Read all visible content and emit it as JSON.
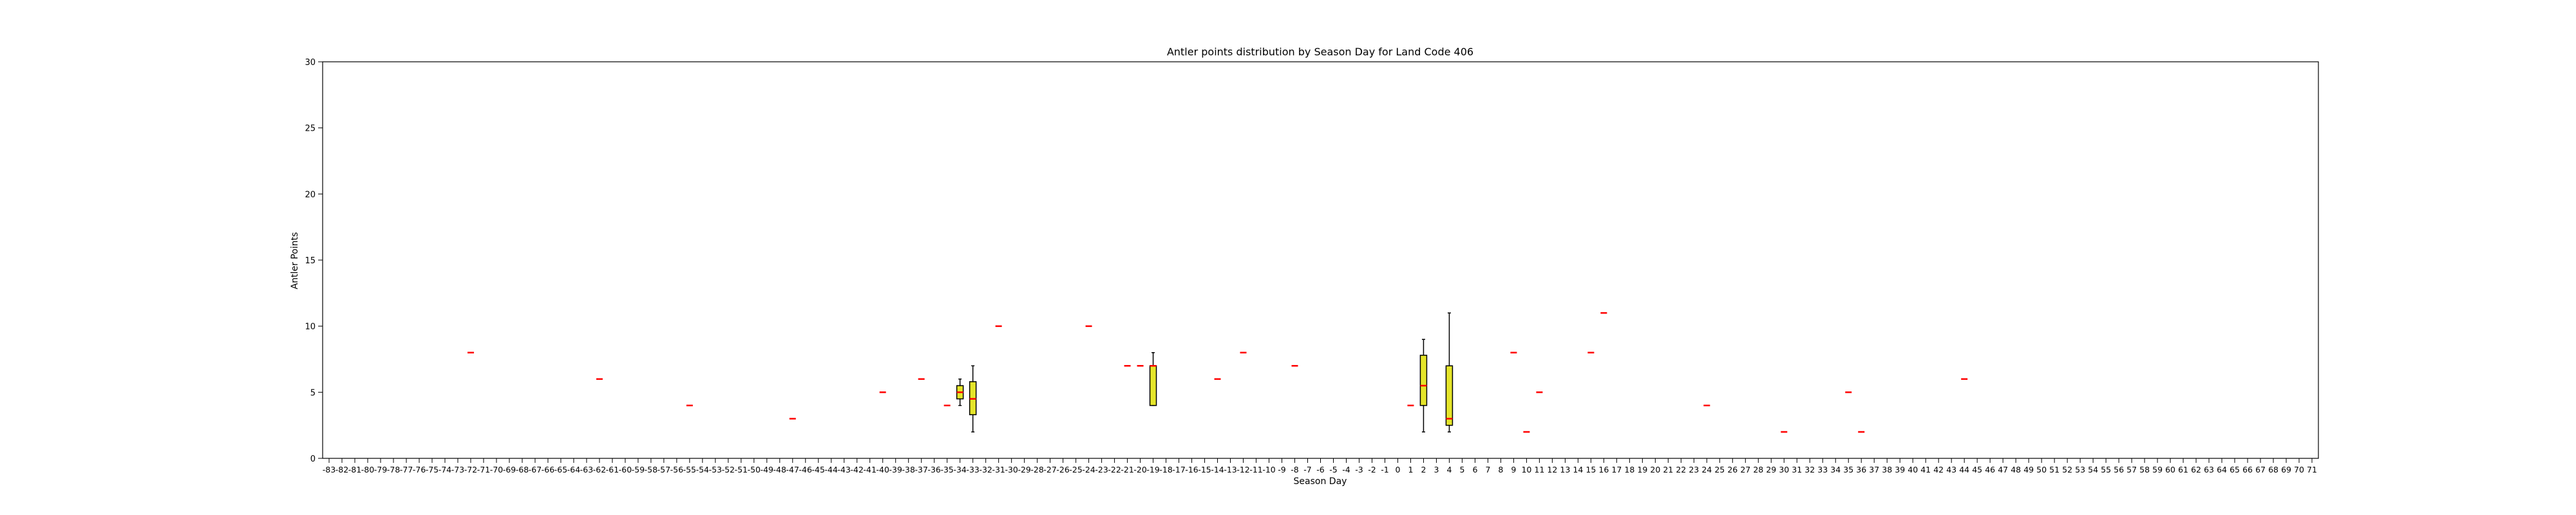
{
  "chart_data": {
    "type": "box",
    "title": "Antler points distribution by Season Day for Land Code 406",
    "xlabel": "Season Day",
    "ylabel": "Antler Points",
    "ylim": [
      0,
      30
    ],
    "yticks": [
      0,
      5,
      10,
      15,
      20,
      25,
      30
    ],
    "x_range": [
      -83,
      71
    ],
    "grid": false,
    "box_color": "#e5e52a",
    "median_color": "#ff0000",
    "boxes": [
      {
        "day": -72,
        "q1": 8,
        "median": 8,
        "q3": 8,
        "whisker_low": 8,
        "whisker_high": 8
      },
      {
        "day": -62,
        "q1": 6,
        "median": 6,
        "q3": 6,
        "whisker_low": 6,
        "whisker_high": 6
      },
      {
        "day": -55,
        "q1": 4,
        "median": 4,
        "q3": 4,
        "whisker_low": 4,
        "whisker_high": 4
      },
      {
        "day": -47,
        "q1": 3,
        "median": 3,
        "q3": 3,
        "whisker_low": 3,
        "whisker_high": 3
      },
      {
        "day": -40,
        "q1": 5,
        "median": 5,
        "q3": 5,
        "whisker_low": 5,
        "whisker_high": 5
      },
      {
        "day": -37,
        "q1": 6,
        "median": 6,
        "q3": 6,
        "whisker_low": 6,
        "whisker_high": 6
      },
      {
        "day": -35,
        "q1": 4,
        "median": 4,
        "q3": 4,
        "whisker_low": 4,
        "whisker_high": 4
      },
      {
        "day": -34,
        "q1": 4.5,
        "median": 5,
        "q3": 5.5,
        "whisker_low": 4,
        "whisker_high": 6
      },
      {
        "day": -33,
        "q1": 3.3,
        "median": 4.5,
        "q3": 5.8,
        "whisker_low": 2,
        "whisker_high": 7
      },
      {
        "day": -31,
        "q1": 10,
        "median": 10,
        "q3": 10,
        "whisker_low": 10,
        "whisker_high": 10
      },
      {
        "day": -24,
        "q1": 10,
        "median": 10,
        "q3": 10,
        "whisker_low": 10,
        "whisker_high": 10
      },
      {
        "day": -21,
        "q1": 7,
        "median": 7,
        "q3": 7,
        "whisker_low": 7,
        "whisker_high": 7
      },
      {
        "day": -20,
        "q1": 7,
        "median": 7,
        "q3": 7,
        "whisker_low": 7,
        "whisker_high": 7
      },
      {
        "day": -19,
        "q1": 4,
        "median": 7,
        "q3": 7,
        "whisker_low": 4,
        "whisker_high": 8
      },
      {
        "day": -14,
        "q1": 6,
        "median": 6,
        "q3": 6,
        "whisker_low": 6,
        "whisker_high": 6
      },
      {
        "day": -12,
        "q1": 8,
        "median": 8,
        "q3": 8,
        "whisker_low": 8,
        "whisker_high": 8
      },
      {
        "day": -8,
        "q1": 7,
        "median": 7,
        "q3": 7,
        "whisker_low": 7,
        "whisker_high": 7
      },
      {
        "day": 1,
        "q1": 4,
        "median": 4,
        "q3": 4,
        "whisker_low": 4,
        "whisker_high": 4
      },
      {
        "day": 2,
        "q1": 4,
        "median": 5.5,
        "q3": 7.8,
        "whisker_low": 2,
        "whisker_high": 9
      },
      {
        "day": 4,
        "q1": 2.5,
        "median": 3,
        "q3": 7,
        "whisker_low": 2,
        "whisker_high": 11
      },
      {
        "day": 9,
        "q1": 8,
        "median": 8,
        "q3": 8,
        "whisker_low": 8,
        "whisker_high": 8
      },
      {
        "day": 10,
        "q1": 2,
        "median": 2,
        "q3": 2,
        "whisker_low": 2,
        "whisker_high": 2
      },
      {
        "day": 11,
        "q1": 5,
        "median": 5,
        "q3": 5,
        "whisker_low": 5,
        "whisker_high": 5
      },
      {
        "day": 15,
        "q1": 8,
        "median": 8,
        "q3": 8,
        "whisker_low": 8,
        "whisker_high": 8
      },
      {
        "day": 16,
        "q1": 11,
        "median": 11,
        "q3": 11,
        "whisker_low": 11,
        "whisker_high": 11
      },
      {
        "day": 24,
        "q1": 4,
        "median": 4,
        "q3": 4,
        "whisker_low": 4,
        "whisker_high": 4
      },
      {
        "day": 30,
        "q1": 2,
        "median": 2,
        "q3": 2,
        "whisker_low": 2,
        "whisker_high": 2
      },
      {
        "day": 35,
        "q1": 5,
        "median": 5,
        "q3": 5,
        "whisker_low": 5,
        "whisker_high": 5
      },
      {
        "day": 36,
        "q1": 2,
        "median": 2,
        "q3": 2,
        "whisker_low": 2,
        "whisker_high": 2
      },
      {
        "day": 44,
        "q1": 6,
        "median": 6,
        "q3": 6,
        "whisker_low": 6,
        "whisker_high": 6
      }
    ]
  }
}
